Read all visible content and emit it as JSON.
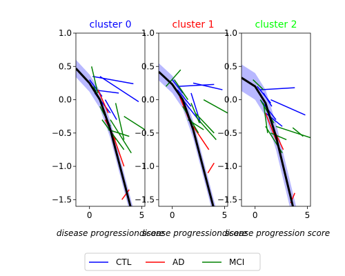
{
  "chart_data": {
    "type": "line",
    "xlabel": "disease progression score",
    "legend": {
      "placement": "bottom-center",
      "entries": [
        {
          "name": "CTL",
          "color": "#0000ff"
        },
        {
          "name": "AD",
          "color": "#ff0000"
        },
        {
          "name": "MCI",
          "color": "#008000"
        }
      ]
    },
    "xlim": [
      -1.3,
      5.3
    ],
    "ylim": [
      -1.6,
      1.0
    ],
    "xticks": [
      "0",
      "5"
    ],
    "yticks": [
      "1.0",
      "0.5",
      "0.0",
      "−0.5",
      "−1.0",
      "−1.5"
    ],
    "yticks_values": [
      1.0,
      0.5,
      0.0,
      -0.5,
      -1.0,
      -1.5
    ],
    "xticks_values": [
      0,
      5
    ],
    "panels": [
      {
        "title": "cluster 0",
        "title_color": "#0000ff",
        "fit": {
          "x": [
            -1.3,
            0,
            1,
            2,
            3,
            4,
            5.3
          ],
          "y": [
            0.47,
            0.25,
            0.0,
            -0.45,
            -1.05,
            -1.65,
            -2.4
          ]
        },
        "band_halfwidth": 0.13,
        "lines": [
          {
            "group": "CTL",
            "x": [
              0.3,
              4.2
            ],
            "y": [
              0.35,
              0.24
            ]
          },
          {
            "group": "CTL",
            "x": [
              1.0,
              4.7
            ],
            "y": [
              0.35,
              -0.03
            ]
          },
          {
            "group": "CTL",
            "x": [
              0.3,
              2.8
            ],
            "y": [
              0.15,
              0.1
            ]
          },
          {
            "group": "CTL",
            "x": [
              0.0,
              1.2
            ],
            "y": [
              0.3,
              0.05
            ]
          },
          {
            "group": "CTL",
            "x": [
              0.5,
              2.0
            ],
            "y": [
              0.1,
              -0.2
            ]
          },
          {
            "group": "CTL",
            "x": [
              1.5,
              2.6
            ],
            "y": [
              0.0,
              -0.3
            ]
          },
          {
            "group": "AD",
            "x": [
              0.8,
              1.8
            ],
            "y": [
              0.15,
              -0.2
            ]
          },
          {
            "group": "AD",
            "x": [
              1.5,
              2.5
            ],
            "y": [
              -0.3,
              -0.6
            ]
          },
          {
            "group": "AD",
            "x": [
              2.3,
              3.3
            ],
            "y": [
              -0.55,
              -1.0
            ]
          },
          {
            "group": "AD",
            "x": [
              3.1,
              3.8
            ],
            "y": [
              -1.5,
              -1.35
            ]
          },
          {
            "group": "MCI",
            "x": [
              0.2,
              0.8
            ],
            "y": [
              0.5,
              0.1
            ]
          },
          {
            "group": "MCI",
            "x": [
              0.4,
              1.5
            ],
            "y": [
              0.2,
              -0.2
            ]
          },
          {
            "group": "MCI",
            "x": [
              1.2,
              3.3
            ],
            "y": [
              -0.3,
              -0.75
            ]
          },
          {
            "group": "MCI",
            "x": [
              2.0,
              4.0
            ],
            "y": [
              -0.3,
              -0.8
            ]
          },
          {
            "group": "MCI",
            "x": [
              3.3,
              5.3
            ],
            "y": [
              -0.25,
              -0.45
            ]
          },
          {
            "group": "MCI",
            "x": [
              1.8,
              3.8
            ],
            "y": [
              -0.45,
              -0.55
            ]
          },
          {
            "group": "MCI",
            "x": [
              2.5,
              3.3
            ],
            "y": [
              -0.05,
              -0.6
            ]
          },
          {
            "group": "MCI",
            "x": [
              1.0,
              2.0
            ],
            "y": [
              -0.1,
              -0.4
            ]
          }
        ]
      },
      {
        "title": "cluster 1",
        "title_color": "#ff0000",
        "fit": {
          "x": [
            -1.3,
            0,
            1,
            2,
            3,
            4,
            5.3
          ],
          "y": [
            0.42,
            0.23,
            0.0,
            -0.45,
            -1.05,
            -1.65,
            -2.4
          ]
        },
        "band_halfwidth": 0.13,
        "lines": [
          {
            "group": "CTL",
            "x": [
              0.5,
              4.0
            ],
            "y": [
              0.2,
              0.23
            ]
          },
          {
            "group": "CTL",
            "x": [
              2.0,
              4.8
            ],
            "y": [
              0.25,
              0.15
            ]
          },
          {
            "group": "CTL",
            "x": [
              0.0,
              1.0
            ],
            "y": [
              0.3,
              0.1
            ]
          },
          {
            "group": "CTL",
            "x": [
              0.5,
              1.8
            ],
            "y": [
              0.15,
              -0.1
            ]
          },
          {
            "group": "CTL",
            "x": [
              1.0,
              2.5
            ],
            "y": [
              0.0,
              -0.3
            ]
          },
          {
            "group": "CTL",
            "x": [
              1.8,
              2.7
            ],
            "y": [
              0.1,
              -0.35
            ]
          },
          {
            "group": "AD",
            "x": [
              0.7,
              1.6
            ],
            "y": [
              0.05,
              -0.3
            ]
          },
          {
            "group": "AD",
            "x": [
              2.0,
              3.5
            ],
            "y": [
              -0.4,
              -0.75
            ]
          },
          {
            "group": "AD",
            "x": [
              3.4,
              4.0
            ],
            "y": [
              -1.1,
              -0.95
            ]
          },
          {
            "group": "MCI",
            "x": [
              -0.6,
              0.8
            ],
            "y": [
              0.2,
              0.45
            ]
          },
          {
            "group": "MCI",
            "x": [
              0.2,
              1.5
            ],
            "y": [
              0.3,
              0.0
            ]
          },
          {
            "group": "MCI",
            "x": [
              1.0,
              2.5
            ],
            "y": [
              -0.1,
              -0.5
            ]
          },
          {
            "group": "MCI",
            "x": [
              3.0,
              5.3
            ],
            "y": [
              0.0,
              -0.2
            ]
          },
          {
            "group": "MCI",
            "x": [
              2.2,
              4.0
            ],
            "y": [
              -0.2,
              -0.5
            ]
          },
          {
            "group": "MCI",
            "x": [
              2.5,
              4.2
            ],
            "y": [
              -0.3,
              -0.6
            ]
          },
          {
            "group": "MCI",
            "x": [
              1.5,
              3.0
            ],
            "y": [
              -0.3,
              -0.45
            ]
          },
          {
            "group": "MCI",
            "x": [
              1.8,
              2.6
            ],
            "y": [
              -0.05,
              -0.35
            ]
          }
        ]
      },
      {
        "title": "cluster 2",
        "title_color": "#00ff00",
        "fit": {
          "x": [
            -1.3,
            0,
            1,
            2,
            3,
            4,
            5.3
          ],
          "y": [
            0.33,
            0.2,
            -0.05,
            -0.55,
            -1.2,
            -1.85,
            -2.6
          ]
        },
        "band_halfwidth": 0.2,
        "lines": [
          {
            "group": "CTL",
            "x": [
              0.5,
              3.8
            ],
            "y": [
              0.15,
              0.18
            ]
          },
          {
            "group": "CTL",
            "x": [
              1.5,
              4.8
            ],
            "y": [
              0.0,
              -0.23
            ]
          },
          {
            "group": "CTL",
            "x": [
              0.2,
              1.5
            ],
            "y": [
              0.2,
              -0.05
            ]
          },
          {
            "group": "CTL",
            "x": [
              0.5,
              2.0
            ],
            "y": [
              0.0,
              -0.3
            ]
          },
          {
            "group": "CTL",
            "x": [
              1.0,
              2.6
            ],
            "y": [
              -0.2,
              -0.4
            ]
          },
          {
            "group": "CTL",
            "x": [
              0.8,
              1.6
            ],
            "y": [
              0.1,
              -0.1
            ]
          },
          {
            "group": "AD",
            "x": [
              1.0,
              2.0
            ],
            "y": [
              -0.2,
              -0.6
            ]
          },
          {
            "group": "AD",
            "x": [
              1.8,
              2.7
            ],
            "y": [
              -0.45,
              -0.75
            ]
          },
          {
            "group": "AD",
            "x": [
              3.4,
              3.8
            ],
            "y": [
              -1.55,
              -1.4
            ]
          },
          {
            "group": "MCI",
            "x": [
              -0.2,
              0.8
            ],
            "y": [
              0.3,
              0.15
            ]
          },
          {
            "group": "MCI",
            "x": [
              0.5,
              1.8
            ],
            "y": [
              0.0,
              -0.35
            ]
          },
          {
            "group": "MCI",
            "x": [
              1.0,
              2.6
            ],
            "y": [
              -0.4,
              -0.8
            ]
          },
          {
            "group": "MCI",
            "x": [
              2.0,
              5.3
            ],
            "y": [
              -0.4,
              -0.57
            ]
          },
          {
            "group": "MCI",
            "x": [
              3.6,
              4.6
            ],
            "y": [
              -0.42,
              -0.55
            ]
          },
          {
            "group": "MCI",
            "x": [
              1.5,
              3.0
            ],
            "y": [
              -0.5,
              -0.6
            ]
          },
          {
            "group": "MCI",
            "x": [
              0.8,
              1.2
            ],
            "y": [
              -0.05,
              -0.5
            ]
          }
        ]
      }
    ]
  }
}
